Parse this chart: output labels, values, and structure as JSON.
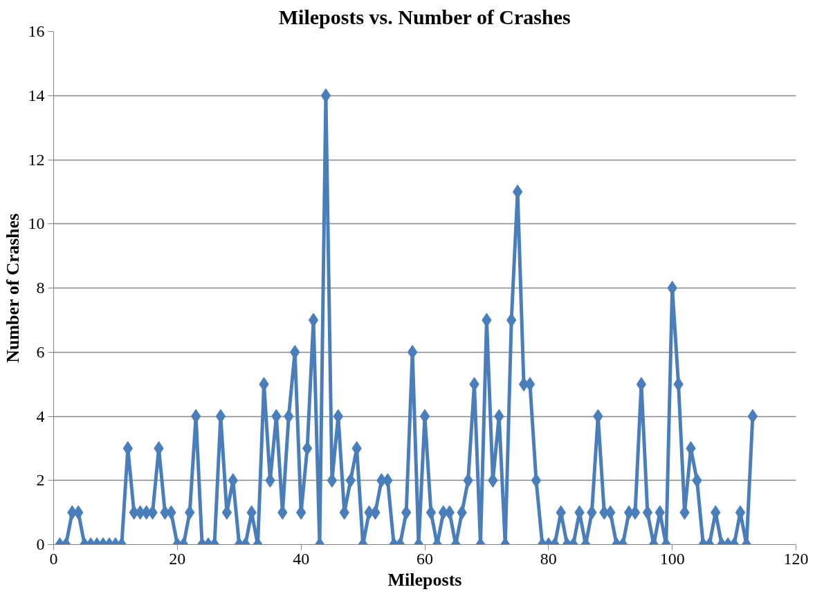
{
  "chart_data": {
    "type": "line",
    "title": "Mileposts vs. Number of Crashes",
    "xlabel": "Mileposts",
    "ylabel": "Number of Crashes",
    "x": [
      1,
      2,
      3,
      4,
      5,
      6,
      7,
      8,
      9,
      10,
      11,
      12,
      13,
      14,
      15,
      16,
      17,
      18,
      19,
      20,
      21,
      22,
      23,
      24,
      25,
      26,
      27,
      28,
      29,
      30,
      31,
      32,
      33,
      34,
      35,
      36,
      37,
      38,
      39,
      40,
      41,
      42,
      43,
      44,
      45,
      46,
      47,
      48,
      49,
      50,
      51,
      52,
      53,
      54,
      55,
      56,
      57,
      58,
      59,
      60,
      61,
      62,
      63,
      64,
      65,
      66,
      67,
      68,
      69,
      70,
      71,
      72,
      73,
      74,
      75,
      76,
      77,
      78,
      79,
      80,
      81,
      82,
      83,
      84,
      85,
      86,
      87,
      88,
      89,
      90,
      91,
      92,
      93,
      94,
      95,
      96,
      97,
      98,
      99,
      100,
      101,
      102,
      103,
      104,
      105,
      106,
      107,
      108,
      109,
      110,
      111,
      112,
      113
    ],
    "series": [
      {
        "color": "#4a7ebb",
        "values": [
          0,
          0,
          1,
          1,
          0,
          0,
          0,
          0,
          0,
          0,
          0,
          3,
          1,
          1,
          1,
          1,
          3,
          1,
          1,
          0,
          0,
          1,
          4,
          0,
          0,
          0,
          4,
          1,
          2,
          0,
          0,
          1,
          0,
          5,
          2,
          4,
          1,
          4,
          6,
          1,
          3,
          7,
          0,
          14,
          2,
          4,
          1,
          2,
          3,
          0,
          1,
          1,
          2,
          2,
          0,
          0,
          1,
          6,
          0,
          4,
          1,
          0,
          1,
          1,
          0,
          1,
          2,
          5,
          0,
          7,
          2,
          4,
          0,
          7,
          11,
          5,
          5,
          2,
          0,
          0,
          0,
          1,
          0,
          0,
          1,
          0,
          1,
          4,
          1,
          1,
          0,
          0,
          1,
          1,
          5,
          1,
          0,
          1,
          0,
          8,
          5,
          1,
          3,
          2,
          0,
          0,
          1,
          0,
          0,
          0,
          1,
          0,
          4
        ]
      }
    ],
    "xlim": [
      0,
      120
    ],
    "xticks": [
      0,
      20,
      40,
      60,
      80,
      100,
      120
    ],
    "ylim": [
      0,
      16
    ],
    "yticks": [
      0,
      2,
      4,
      6,
      8,
      10,
      12,
      14,
      16
    ],
    "grid": "y",
    "marker": "diamond",
    "line_style": "solid"
  }
}
